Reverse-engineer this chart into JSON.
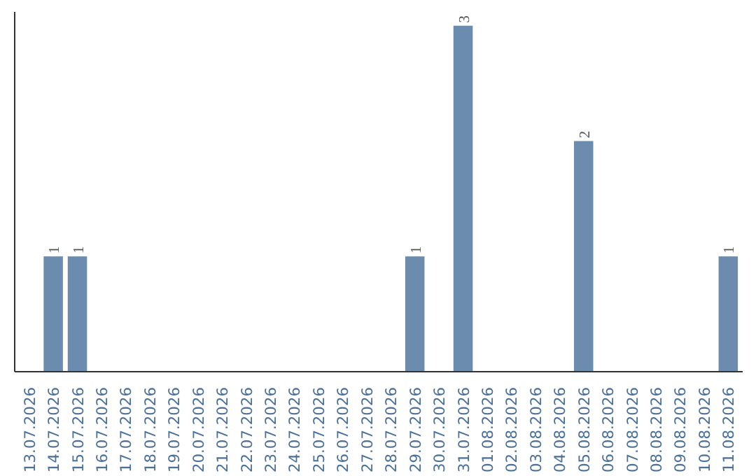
{
  "chart_data": {
    "type": "bar",
    "categories": [
      "13.07.2026",
      "14.07.2026",
      "15.07.2026",
      "16.07.2026",
      "17.07.2026",
      "18.07.2026",
      "19.07.2026",
      "20.07.2026",
      "21.07.2026",
      "22.07.2026",
      "23.07.2026",
      "24.07.2026",
      "25.07.2026",
      "26.07.2026",
      "27.07.2026",
      "28.07.2026",
      "29.07.2026",
      "30.07.2026",
      "31.07.2026",
      "01.08.2026",
      "02.08.2026",
      "03.08.2026",
      "04.08.2026",
      "05.08.2026",
      "06.08.2026",
      "07.08.2026",
      "08.08.2026",
      "09.08.2026",
      "10.08.2026",
      "11.08.2026"
    ],
    "values": [
      0,
      1,
      1,
      0,
      0,
      0,
      0,
      0,
      0,
      0,
      0,
      0,
      0,
      0,
      0,
      0,
      1,
      0,
      3,
      0,
      0,
      0,
      0,
      2,
      0,
      0,
      0,
      0,
      0,
      1
    ],
    "value_labels": [
      null,
      "1",
      "1",
      null,
      null,
      null,
      null,
      null,
      null,
      null,
      null,
      null,
      null,
      null,
      null,
      null,
      "1",
      null,
      "3",
      null,
      null,
      null,
      null,
      "2",
      null,
      null,
      null,
      null,
      null,
      "1"
    ],
    "color": "#6b8cae",
    "ylim": [
      0,
      3.12
    ],
    "grid": false,
    "tick_labels": "x"
  }
}
